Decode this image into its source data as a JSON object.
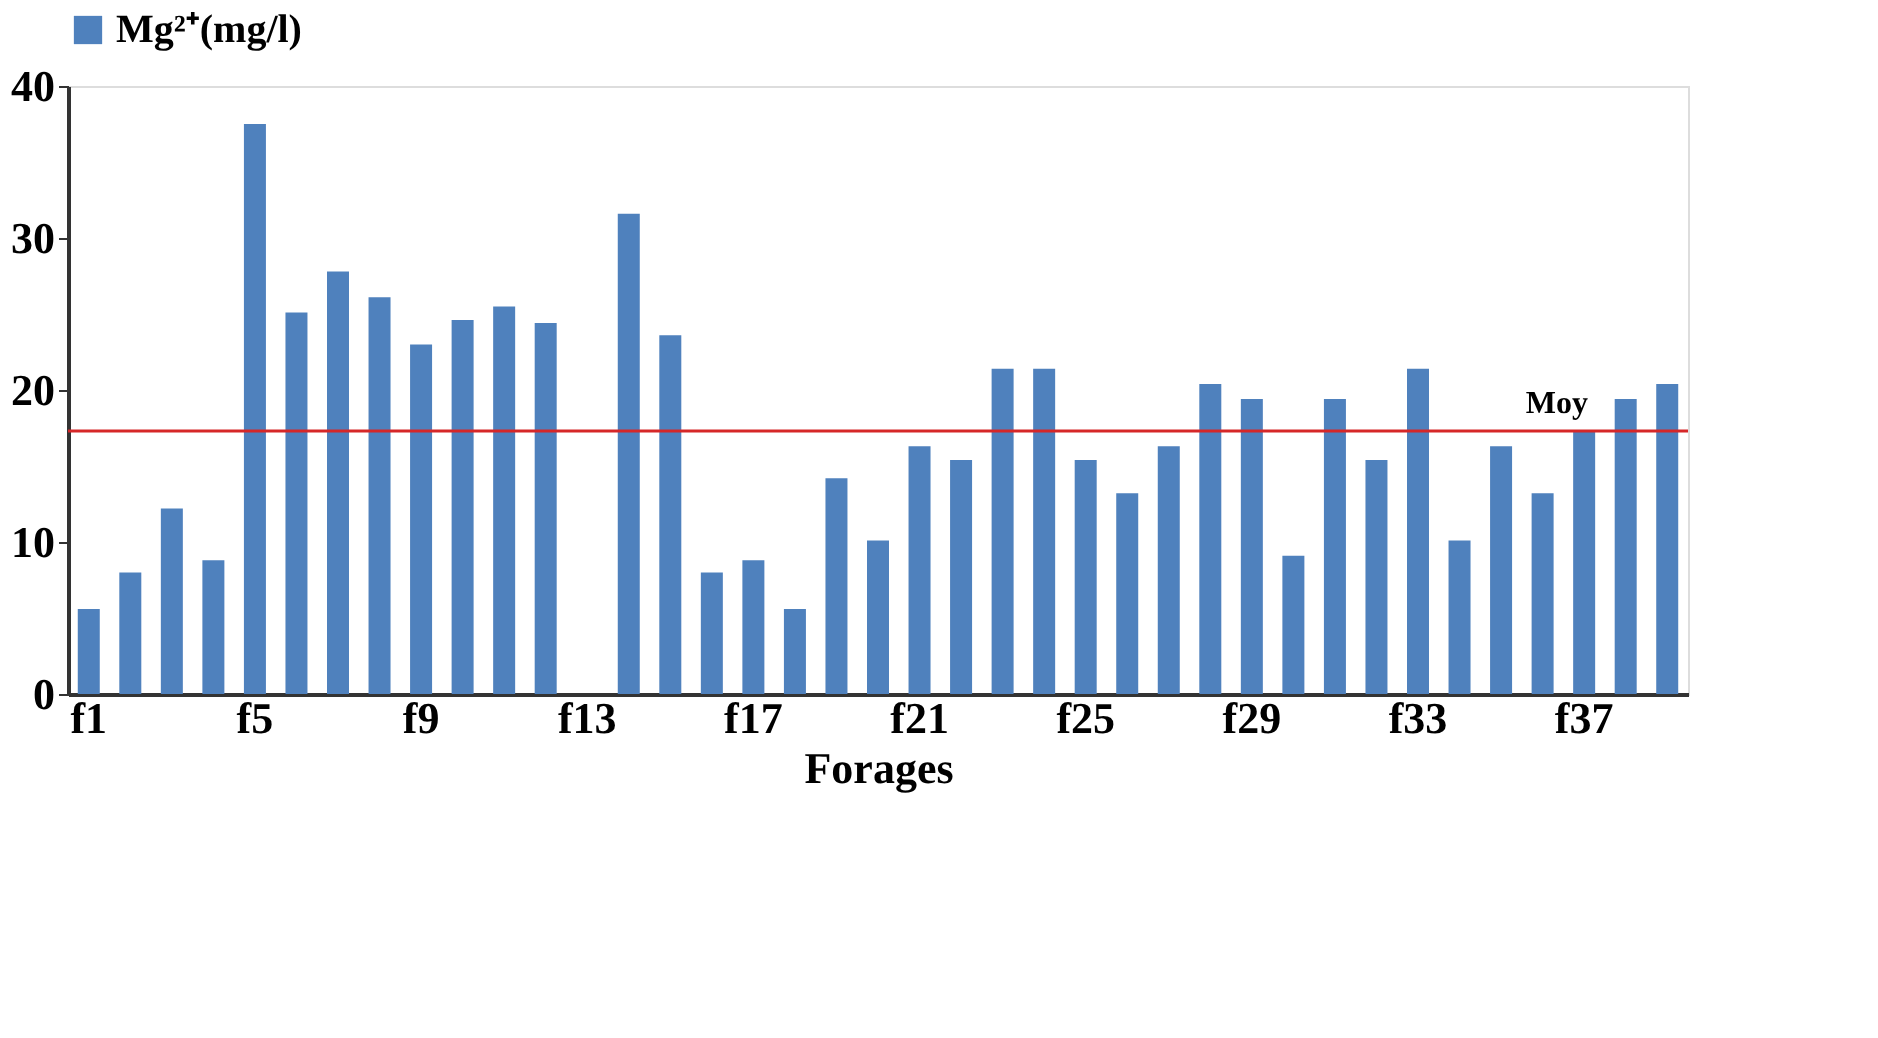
{
  "chart_data": {
    "type": "bar",
    "xlabel": "Forages",
    "categories": [
      "f1",
      null,
      null,
      null,
      "f5",
      null,
      null,
      null,
      "f9",
      null,
      null,
      null,
      "f13",
      null,
      null,
      null,
      "f17",
      null,
      null,
      null,
      "f21",
      null,
      null,
      null,
      "f25",
      null,
      null,
      null,
      "f29",
      null,
      null,
      null,
      "f33",
      null,
      null,
      null,
      "f37",
      null,
      null
    ],
    "series": [
      {
        "name": "Mg²⁺(mg/l)",
        "color": "#4f81bd",
        "values": [
          5.6,
          8,
          12.2,
          8.8,
          37.5,
          25.1,
          27.8,
          26.1,
          23,
          24.6,
          25.5,
          24.4,
          0,
          31.6,
          23.6,
          8,
          8.8,
          5.6,
          14.2,
          10.1,
          16.3,
          15.4,
          21.4,
          21.4,
          15.4,
          13.2,
          16.3,
          20.4,
          19.4,
          9.1,
          19.4,
          15.4,
          21.4,
          10.1,
          16.3,
          13.2,
          17.3,
          19.4,
          20.4
        ]
      }
    ],
    "ylim": [
      0,
      40
    ],
    "yticks": [
      0,
      10,
      20,
      30,
      40
    ],
    "ref_lines": [
      {
        "axis": "y",
        "value": 17.3,
        "label": "Moy",
        "color": "#d62728"
      }
    ],
    "grid": false,
    "legend": "top"
  }
}
